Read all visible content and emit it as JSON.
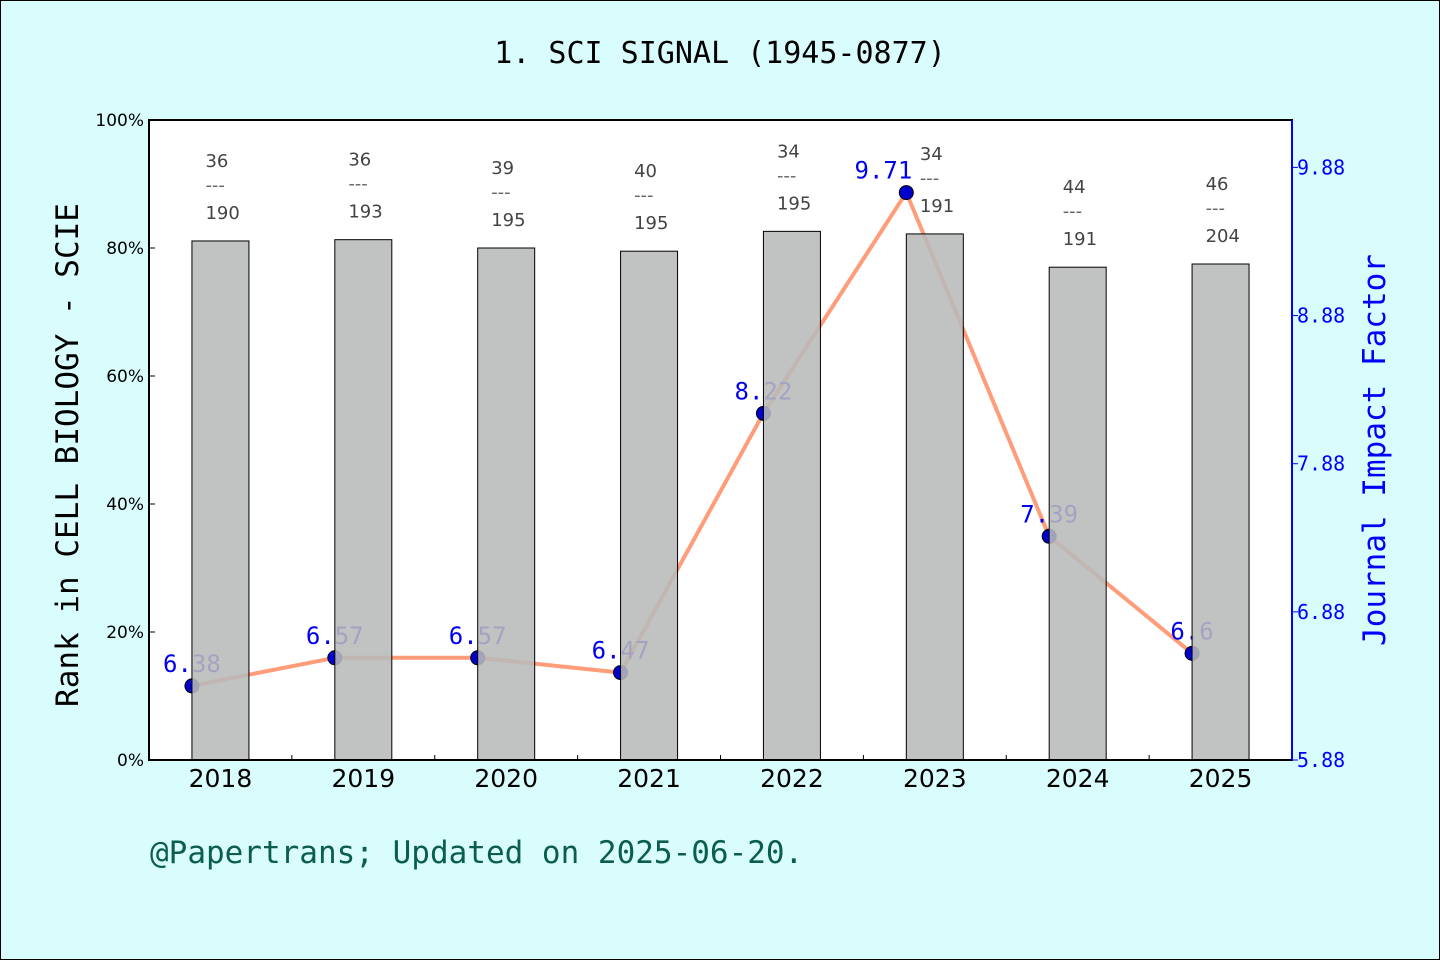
{
  "chart_data": {
    "type": "bar+line",
    "title": "1. SCI SIGNAL (1945-0877)",
    "categories": [
      "2018",
      "2019",
      "2020",
      "2021",
      "2022",
      "2023",
      "2024",
      "2025"
    ],
    "ylabel_left": "Rank in CELL BIOLOGY - SCIE",
    "ylabel_right": "Journal Impact Factor",
    "ylim_left": [
      0,
      100
    ],
    "yticks_left": [
      "0%",
      "20%",
      "40%",
      "60%",
      "80%",
      "100%"
    ],
    "yticks_right": [
      "5.88",
      "6.88",
      "7.88",
      "8.88",
      "9.88"
    ],
    "ylim_right": [
      5.88,
      10.2
    ],
    "ranks": [
      36,
      36,
      39,
      40,
      34,
      34,
      44,
      46
    ],
    "totals": [
      190,
      193,
      195,
      195,
      195,
      191,
      191,
      204
    ],
    "bar_values_percent": [
      81.1,
      81.3,
      80.0,
      79.5,
      82.6,
      82.2,
      77.0,
      77.5
    ],
    "impact_factor": [
      6.38,
      6.57,
      6.57,
      6.47,
      8.22,
      9.71,
      7.39,
      6.6
    ],
    "if_labels": [
      "6.38",
      "6.57",
      "6.57",
      "6.47",
      "8.22",
      "9.71",
      "7.39",
      "6.6"
    ],
    "colors": {
      "bar": "#b8b9ba",
      "line": "#ff9c7a",
      "point": "#0000cc",
      "right_axis": "#0000ff",
      "background": "#d9fdfd"
    }
  },
  "footer": "@Papertrans; Updated on 2025-06-20."
}
